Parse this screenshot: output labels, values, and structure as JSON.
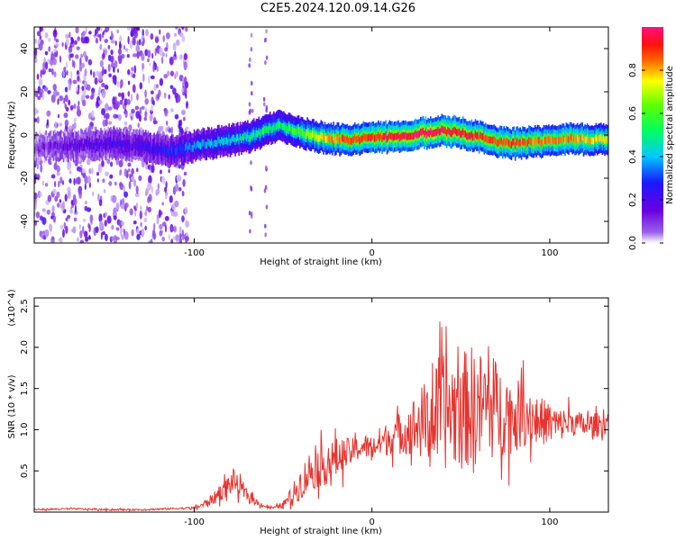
{
  "title": "C2E5.2024.120.09.14.G26",
  "colors": {
    "trace": "#e8332e",
    "frame": "#000000"
  },
  "chart_data": [
    {
      "type": "heatmap",
      "xlabel": "Height of straight line (km)",
      "ylabel": "Frequency (Hz)",
      "xlim": [
        -190,
        133
      ],
      "ylim": [
        -50,
        50
      ],
      "x_ticks": [
        -100,
        0,
        100
      ],
      "y_ticks": [
        -40,
        -20,
        0,
        20,
        40
      ],
      "colorbar": {
        "label": "Normalized spectral amplitude",
        "range": [
          0,
          1
        ],
        "ticks": [
          0.0,
          0.2,
          0.4,
          0.6,
          0.8
        ],
        "colormap": "rainbow (purple-blue-cyan-green-yellow-red-magenta)"
      },
      "ridge": {
        "x": [
          -190,
          -170,
          -150,
          -130,
          -115,
          -100,
          -85,
          -70,
          -60,
          -52,
          -45,
          -40,
          -30,
          -20,
          -10,
          0,
          10,
          20,
          30,
          40,
          50,
          60,
          70,
          80,
          90,
          100,
          110,
          120,
          133
        ],
        "frequency": [
          -6,
          -5,
          -4,
          -5,
          -8,
          -5,
          -3,
          -1,
          2,
          5,
          2,
          1,
          -1,
          -2,
          -2,
          -1,
          -1,
          0,
          1,
          2,
          1,
          -1,
          -3,
          -4,
          -3,
          -3,
          -2,
          -2,
          -2
        ],
        "peak_amplitude": [
          0.1,
          0.15,
          0.2,
          0.2,
          0.25,
          0.35,
          0.4,
          0.45,
          0.5,
          0.5,
          0.55,
          0.6,
          0.7,
          0.8,
          0.85,
          0.85,
          0.9,
          0.9,
          0.95,
          0.9,
          0.9,
          0.85,
          0.85,
          0.85,
          0.8,
          0.8,
          0.8,
          0.75,
          0.7
        ]
      }
    },
    {
      "type": "line",
      "xlabel": "Height of straight line (km)",
      "ylabel": "SNR (10 * v/v)",
      "y_multiplier": "(x10^4)",
      "xlim": [
        -190,
        133
      ],
      "ylim": [
        0,
        26000
      ],
      "x_ticks": [
        -100,
        0,
        100
      ],
      "y_ticks": [
        5000,
        10000,
        15000,
        20000,
        25000
      ],
      "y_tick_labels": [
        "0.5",
        "1.0",
        "1.5",
        "2.0",
        "2.5"
      ],
      "series": [
        {
          "x": [
            -190,
            -170,
            -150,
            -130,
            -115,
            -100,
            -95,
            -88,
            -82,
            -78,
            -74,
            -70,
            -65,
            -60,
            -55,
            -50,
            -45,
            -40,
            -35,
            -30,
            -25,
            -20,
            -15,
            -10,
            -5,
            0,
            5,
            10,
            15,
            20,
            25,
            30,
            35,
            40,
            45,
            50,
            55,
            60,
            65,
            70,
            75,
            80,
            85,
            90,
            95,
            100,
            105,
            110,
            115,
            120,
            125,
            133
          ],
          "y": [
            300,
            400,
            300,
            300,
            400,
            500,
            900,
            1800,
            3000,
            3800,
            2800,
            2000,
            1200,
            700,
            500,
            900,
            2000,
            3500,
            5000,
            5500,
            5800,
            6500,
            7000,
            7500,
            8000,
            7800,
            8500,
            9000,
            9500,
            10000,
            10500,
            11000,
            11500,
            12000,
            12500,
            12000,
            13000,
            12500,
            13000,
            12500,
            12000,
            11500,
            12000,
            11500,
            11000,
            11000,
            10500,
            11000,
            10800,
            10500,
            10500,
            11000
          ],
          "noise": [
            100,
            100,
            100,
            100,
            100,
            150,
            400,
            800,
            1200,
            1500,
            1000,
            700,
            400,
            200,
            200,
            400,
            1200,
            2000,
            2500,
            2500,
            2500,
            2500,
            2000,
            1500,
            1500,
            1500,
            2000,
            2000,
            2500,
            3000,
            4000,
            5000,
            6000,
            7000,
            7000,
            7000,
            7500,
            7000,
            7000,
            6000,
            5000,
            4500,
            4000,
            3500,
            3000,
            2500,
            2000,
            2000,
            1500,
            1500,
            1500,
            1500
          ]
        }
      ]
    }
  ]
}
